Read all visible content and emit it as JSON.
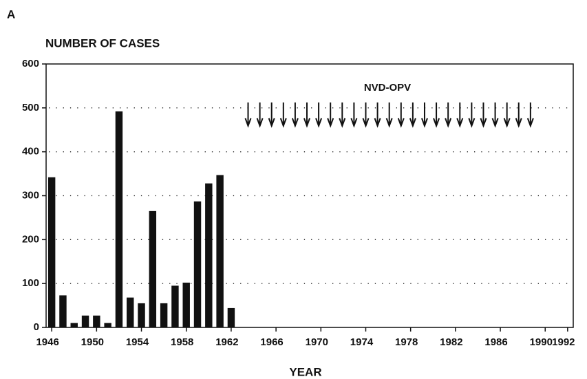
{
  "chart_data": {
    "type": "bar",
    "panel_label": "A",
    "y_axis_label": "NUMBER OF CASES",
    "x_axis_label": "YEAR",
    "annotation": "NVD-OPV",
    "annotation_arrows_x": [
      1964,
      1965,
      1966,
      1967,
      1968,
      1969,
      1970,
      1971,
      1972,
      1973,
      1974,
      1975,
      1976,
      1977,
      1978,
      1979,
      1980,
      1981,
      1982,
      1983,
      1984,
      1985,
      1986,
      1987,
      1988
    ],
    "categories": [
      1946,
      null,
      null,
      null,
      1950,
      null,
      null,
      null,
      1954,
      null,
      null,
      null,
      1958,
      null,
      null,
      null,
      1962,
      null,
      null,
      null,
      1966,
      null,
      null,
      null,
      1970,
      null,
      null,
      null,
      1974,
      null,
      null,
      null,
      1978,
      null,
      null,
      null,
      1982,
      null,
      null,
      null,
      1986,
      null,
      null,
      null,
      1990,
      null,
      1992
    ],
    "values": [
      342,
      73,
      10,
      27,
      27,
      10,
      492,
      68,
      55,
      265,
      55,
      95,
      102,
      287,
      328,
      347,
      44,
      0,
      0,
      0,
      0,
      0,
      0,
      0,
      0,
      0,
      0,
      0,
      0,
      0,
      0,
      0,
      0,
      0,
      0,
      0,
      0,
      0,
      0,
      0,
      0,
      0,
      0,
      0,
      0,
      0,
      0
    ],
    "color": "#111111",
    "ylim": [
      0,
      600
    ],
    "yticks": [
      0,
      100,
      200,
      300,
      400,
      500,
      600
    ],
    "grid": true,
    "grid_style": "dotted"
  }
}
